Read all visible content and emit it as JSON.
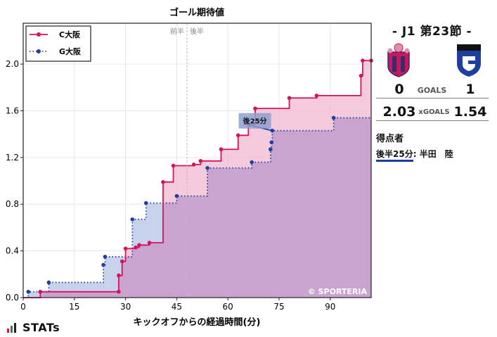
{
  "match": {
    "title": "- J1 第23節 -",
    "home_team": "C大阪",
    "away_team": "G大阪",
    "goals_label": "GOALS",
    "xgoals_label": "xGOALS",
    "home_goals": "0",
    "away_goals": "1",
    "home_xg": "2.03",
    "away_xg": "1.54",
    "scorers_title": "得点者",
    "scorers": [
      {
        "time": "後半25分",
        "sep": ":",
        "name": "半田　陸"
      }
    ]
  },
  "branding": {
    "stats_logo": "STATs",
    "watermark": "© SPORTERIA"
  },
  "colors": {
    "home": "#d4145a",
    "away": "#1f3fa0",
    "home_fill": "#f2b8cf",
    "away_fill": "#b5c3e6",
    "overlap_fill": "#c8a4cf"
  },
  "chart_data": {
    "type": "line",
    "step": true,
    "title": "ゴール期待値",
    "xlabel": "キックオフからの経過時間(分)",
    "ylabel": "",
    "xlim": [
      0,
      102
    ],
    "ylim": [
      0,
      2.35
    ],
    "xticks": [
      0,
      15,
      30,
      45,
      60,
      75,
      90
    ],
    "yticks": [
      0.0,
      0.4,
      0.8,
      1.2,
      1.6,
      2.0
    ],
    "ytick_labels": [
      "0.0",
      "0.4",
      "0.8",
      "1.2",
      "1.6",
      "2.0"
    ],
    "grid": true,
    "legend": "top-left",
    "half_time": {
      "x": 48,
      "left_label": "前半",
      "right_label": "後半"
    },
    "annotation": {
      "text": "後25分",
      "x": 70,
      "y": 1.43
    },
    "series": [
      {
        "name": "C大阪",
        "style": "solid",
        "x": [
          0,
          5,
          28,
          28,
          29,
          30,
          33,
          34,
          37,
          41,
          44,
          50,
          52,
          58,
          63,
          66,
          68,
          78,
          86,
          99,
          99.5,
          102
        ],
        "y": [
          0,
          0.05,
          0.05,
          0.19,
          0.31,
          0.42,
          0.43,
          0.45,
          0.47,
          0.99,
          1.13,
          1.14,
          1.17,
          1.27,
          1.39,
          1.48,
          1.62,
          1.71,
          1.73,
          1.9,
          2.03,
          2.03
        ]
      },
      {
        "name": "G大阪",
        "style": "dotted",
        "x": [
          0,
          1.5,
          7.5,
          23.5,
          24,
          32,
          36,
          45,
          54,
          67,
          72.5,
          72.8,
          73,
          91,
          102
        ],
        "y": [
          0,
          0.05,
          0.13,
          0.28,
          0.35,
          0.67,
          0.81,
          0.87,
          1.11,
          1.16,
          1.27,
          1.33,
          1.43,
          1.54,
          1.54
        ]
      }
    ]
  }
}
